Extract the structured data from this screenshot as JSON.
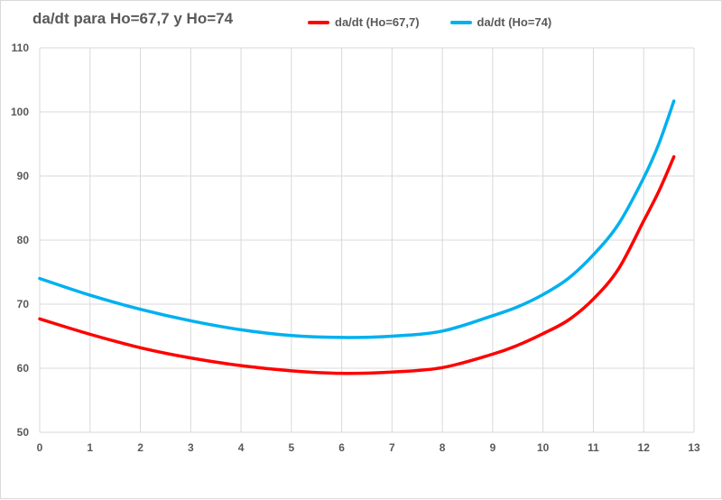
{
  "chart_data": {
    "type": "line",
    "title": "da/dt  para  Ho=67,7  y Ho=74",
    "xlabel": "",
    "ylabel": "",
    "xlim": [
      0,
      13
    ],
    "ylim": [
      50,
      110
    ],
    "xticks": [
      0,
      1,
      2,
      3,
      4,
      5,
      6,
      7,
      8,
      9,
      10,
      11,
      12,
      13
    ],
    "yticks": [
      50,
      60,
      70,
      80,
      90,
      100,
      110
    ],
    "grid": "vertical-and-horizontal",
    "legend_position": "top",
    "series": [
      {
        "name": "da/dt (Ho=67,7)",
        "color": "#ff0000",
        "x": [
          0,
          1,
          2,
          3,
          4,
          5,
          6,
          7,
          8,
          9,
          9.5,
          10,
          10.5,
          11,
          11.5,
          12,
          12.3,
          12.6
        ],
        "y": [
          67.7,
          65.3,
          63.2,
          61.6,
          60.4,
          59.6,
          59.2,
          59.4,
          60.1,
          62.2,
          63.6,
          65.4,
          67.5,
          70.8,
          75.5,
          83.0,
          87.6,
          93.0
        ]
      },
      {
        "name": "da/dt (Ho=74)",
        "color": "#00b0f0",
        "x": [
          0,
          1,
          2,
          3,
          4,
          5,
          6,
          7,
          8,
          9,
          9.5,
          10,
          10.5,
          11,
          11.5,
          12,
          12.3,
          12.6
        ],
        "y": [
          74.0,
          71.4,
          69.2,
          67.4,
          66.0,
          65.1,
          64.8,
          65.0,
          65.8,
          68.2,
          69.6,
          71.5,
          74.0,
          77.7,
          82.5,
          89.7,
          95.0,
          101.7
        ]
      }
    ]
  }
}
